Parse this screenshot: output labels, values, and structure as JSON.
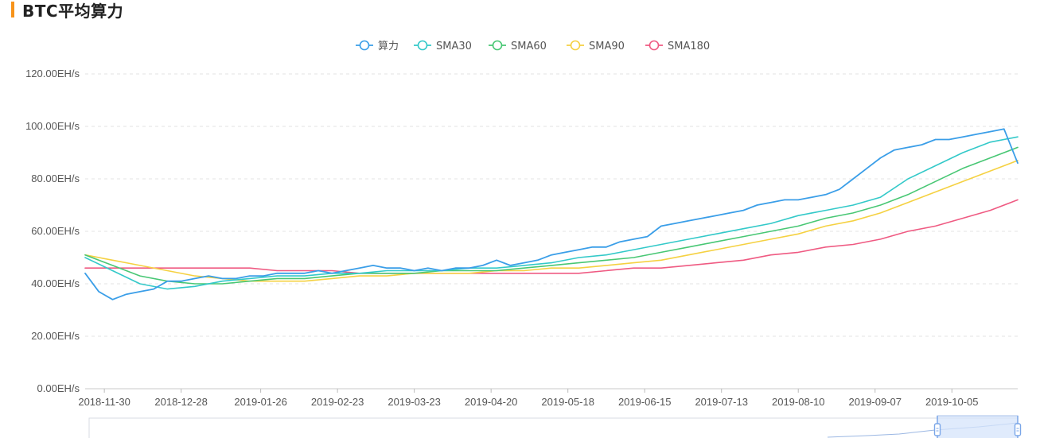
{
  "page": {
    "title": "BTC平均算力"
  },
  "colors": {
    "accent": "#f7931a",
    "hashrate": "#3a9ee8",
    "sma30": "#33c9c9",
    "sma60": "#48c774",
    "sma90": "#f5d142",
    "sma180": "#ef5a82",
    "grid": "#e3e3e3",
    "zoom_fill": "#d6e4fb",
    "zoom_handle": "#7aa6e8"
  },
  "chart_data": {
    "type": "line",
    "title": "BTC平均算力",
    "legend_position": "top-center",
    "grid": true,
    "y_unit": "EH/s",
    "ylim": [
      0,
      120
    ],
    "y_ticks": [
      "0.00EH/s",
      "20.00EH/s",
      "40.00EH/s",
      "60.00EH/s",
      "80.00EH/s",
      "100.00EH/s",
      "120.00EH/s"
    ],
    "x_ticks": [
      "2018-11-30",
      "2018-12-28",
      "2019-01-26",
      "2019-02-23",
      "2019-03-23",
      "2019-04-20",
      "2019-05-18",
      "2019-06-15",
      "2019-07-13",
      "2019-08-10",
      "2019-09-07",
      "2019-10-05"
    ],
    "x_range": [
      "2018-11-23",
      "2019-10-29"
    ],
    "series": [
      {
        "name": "算力",
        "key": "hashrate",
        "points": [
          [
            "2018-11-23",
            44
          ],
          [
            "2018-11-28",
            37
          ],
          [
            "2018-12-03",
            34
          ],
          [
            "2018-12-08",
            36
          ],
          [
            "2018-12-13",
            37
          ],
          [
            "2018-12-18",
            38
          ],
          [
            "2018-12-23",
            41
          ],
          [
            "2018-12-28",
            41
          ],
          [
            "2019-01-02",
            42
          ],
          [
            "2019-01-07",
            43
          ],
          [
            "2019-01-12",
            42
          ],
          [
            "2019-01-17",
            42
          ],
          [
            "2019-01-22",
            43
          ],
          [
            "2019-01-27",
            43
          ],
          [
            "2019-02-01",
            44
          ],
          [
            "2019-02-06",
            44
          ],
          [
            "2019-02-11",
            44
          ],
          [
            "2019-02-16",
            45
          ],
          [
            "2019-02-21",
            44
          ],
          [
            "2019-02-26",
            45
          ],
          [
            "2019-03-03",
            46
          ],
          [
            "2019-03-08",
            47
          ],
          [
            "2019-03-13",
            46
          ],
          [
            "2019-03-18",
            46
          ],
          [
            "2019-03-23",
            45
          ],
          [
            "2019-03-28",
            46
          ],
          [
            "2019-04-02",
            45
          ],
          [
            "2019-04-07",
            46
          ],
          [
            "2019-04-12",
            46
          ],
          [
            "2019-04-17",
            47
          ],
          [
            "2019-04-22",
            49
          ],
          [
            "2019-04-27",
            47
          ],
          [
            "2019-05-02",
            48
          ],
          [
            "2019-05-07",
            49
          ],
          [
            "2019-05-12",
            51
          ],
          [
            "2019-05-17",
            52
          ],
          [
            "2019-05-22",
            53
          ],
          [
            "2019-05-27",
            54
          ],
          [
            "2019-06-01",
            54
          ],
          [
            "2019-06-06",
            56
          ],
          [
            "2019-06-11",
            57
          ],
          [
            "2019-06-16",
            58
          ],
          [
            "2019-06-21",
            62
          ],
          [
            "2019-06-26",
            63
          ],
          [
            "2019-07-01",
            64
          ],
          [
            "2019-07-06",
            65
          ],
          [
            "2019-07-11",
            66
          ],
          [
            "2019-07-16",
            67
          ],
          [
            "2019-07-21",
            68
          ],
          [
            "2019-07-26",
            70
          ],
          [
            "2019-07-31",
            71
          ],
          [
            "2019-08-05",
            72
          ],
          [
            "2019-08-10",
            72
          ],
          [
            "2019-08-15",
            73
          ],
          [
            "2019-08-20",
            74
          ],
          [
            "2019-08-25",
            76
          ],
          [
            "2019-08-30",
            80
          ],
          [
            "2019-09-04",
            84
          ],
          [
            "2019-09-09",
            88
          ],
          [
            "2019-09-14",
            91
          ],
          [
            "2019-09-19",
            92
          ],
          [
            "2019-09-24",
            93
          ],
          [
            "2019-09-29",
            95
          ],
          [
            "2019-10-04",
            95
          ],
          [
            "2019-10-09",
            96
          ],
          [
            "2019-10-14",
            97
          ],
          [
            "2019-10-19",
            98
          ],
          [
            "2019-10-24",
            99
          ],
          [
            "2019-10-29",
            86
          ]
        ]
      },
      {
        "name": "SMA30",
        "key": "sma30",
        "points": [
          [
            "2018-11-23",
            50
          ],
          [
            "2018-12-03",
            45
          ],
          [
            "2018-12-13",
            40
          ],
          [
            "2018-12-23",
            38
          ],
          [
            "2019-01-02",
            39
          ],
          [
            "2019-01-12",
            41
          ],
          [
            "2019-01-22",
            42
          ],
          [
            "2019-02-01",
            43
          ],
          [
            "2019-02-11",
            43
          ],
          [
            "2019-02-21",
            44
          ],
          [
            "2019-03-03",
            44
          ],
          [
            "2019-03-13",
            45
          ],
          [
            "2019-03-23",
            45
          ],
          [
            "2019-04-02",
            45
          ],
          [
            "2019-04-12",
            46
          ],
          [
            "2019-04-22",
            46
          ],
          [
            "2019-05-02",
            47
          ],
          [
            "2019-05-12",
            48
          ],
          [
            "2019-05-22",
            50
          ],
          [
            "2019-06-01",
            51
          ],
          [
            "2019-06-11",
            53
          ],
          [
            "2019-06-21",
            55
          ],
          [
            "2019-07-01",
            57
          ],
          [
            "2019-07-11",
            59
          ],
          [
            "2019-07-21",
            61
          ],
          [
            "2019-07-31",
            63
          ],
          [
            "2019-08-10",
            66
          ],
          [
            "2019-08-20",
            68
          ],
          [
            "2019-08-30",
            70
          ],
          [
            "2019-09-09",
            73
          ],
          [
            "2019-09-19",
            80
          ],
          [
            "2019-09-29",
            85
          ],
          [
            "2019-10-09",
            90
          ],
          [
            "2019-10-19",
            94
          ],
          [
            "2019-10-29",
            96
          ]
        ]
      },
      {
        "name": "SMA60",
        "key": "sma60",
        "points": [
          [
            "2018-11-23",
            51
          ],
          [
            "2018-12-03",
            47
          ],
          [
            "2018-12-13",
            43
          ],
          [
            "2018-12-23",
            41
          ],
          [
            "2019-01-02",
            40
          ],
          [
            "2019-01-12",
            40
          ],
          [
            "2019-01-22",
            41
          ],
          [
            "2019-02-01",
            42
          ],
          [
            "2019-02-11",
            42
          ],
          [
            "2019-02-21",
            43
          ],
          [
            "2019-03-03",
            44
          ],
          [
            "2019-03-13",
            44
          ],
          [
            "2019-03-23",
            44
          ],
          [
            "2019-04-02",
            45
          ],
          [
            "2019-04-12",
            45
          ],
          [
            "2019-04-22",
            45
          ],
          [
            "2019-05-02",
            46
          ],
          [
            "2019-05-12",
            47
          ],
          [
            "2019-05-22",
            48
          ],
          [
            "2019-06-01",
            49
          ],
          [
            "2019-06-11",
            50
          ],
          [
            "2019-06-21",
            52
          ],
          [
            "2019-07-01",
            54
          ],
          [
            "2019-07-11",
            56
          ],
          [
            "2019-07-21",
            58
          ],
          [
            "2019-07-31",
            60
          ],
          [
            "2019-08-10",
            62
          ],
          [
            "2019-08-20",
            65
          ],
          [
            "2019-08-30",
            67
          ],
          [
            "2019-09-09",
            70
          ],
          [
            "2019-09-19",
            74
          ],
          [
            "2019-09-29",
            79
          ],
          [
            "2019-10-09",
            84
          ],
          [
            "2019-10-19",
            88
          ],
          [
            "2019-10-29",
            92
          ]
        ]
      },
      {
        "name": "SMA90",
        "key": "sma90",
        "points": [
          [
            "2018-11-23",
            51
          ],
          [
            "2018-12-03",
            49
          ],
          [
            "2018-12-13",
            47
          ],
          [
            "2018-12-23",
            45
          ],
          [
            "2019-01-02",
            43
          ],
          [
            "2019-01-12",
            42
          ],
          [
            "2019-01-22",
            41
          ],
          [
            "2019-02-01",
            41
          ],
          [
            "2019-02-11",
            41
          ],
          [
            "2019-02-21",
            42
          ],
          [
            "2019-03-03",
            43
          ],
          [
            "2019-03-13",
            43
          ],
          [
            "2019-03-23",
            44
          ],
          [
            "2019-04-02",
            44
          ],
          [
            "2019-04-12",
            44
          ],
          [
            "2019-04-22",
            45
          ],
          [
            "2019-05-02",
            45
          ],
          [
            "2019-05-12",
            46
          ],
          [
            "2019-05-22",
            46
          ],
          [
            "2019-06-01",
            47
          ],
          [
            "2019-06-11",
            48
          ],
          [
            "2019-06-21",
            49
          ],
          [
            "2019-07-01",
            51
          ],
          [
            "2019-07-11",
            53
          ],
          [
            "2019-07-21",
            55
          ],
          [
            "2019-07-31",
            57
          ],
          [
            "2019-08-10",
            59
          ],
          [
            "2019-08-20",
            62
          ],
          [
            "2019-08-30",
            64
          ],
          [
            "2019-09-09",
            67
          ],
          [
            "2019-09-19",
            71
          ],
          [
            "2019-09-29",
            75
          ],
          [
            "2019-10-09",
            79
          ],
          [
            "2019-10-19",
            83
          ],
          [
            "2019-10-29",
            87
          ]
        ]
      },
      {
        "name": "SMA180",
        "key": "sma180",
        "points": [
          [
            "2018-11-23",
            46
          ],
          [
            "2018-12-03",
            46
          ],
          [
            "2018-12-13",
            46
          ],
          [
            "2018-12-23",
            46
          ],
          [
            "2019-01-02",
            46
          ],
          [
            "2019-01-12",
            46
          ],
          [
            "2019-01-22",
            46
          ],
          [
            "2019-02-01",
            45
          ],
          [
            "2019-02-11",
            45
          ],
          [
            "2019-02-21",
            45
          ],
          [
            "2019-03-03",
            44
          ],
          [
            "2019-03-13",
            44
          ],
          [
            "2019-03-23",
            44
          ],
          [
            "2019-04-02",
            44
          ],
          [
            "2019-04-12",
            44
          ],
          [
            "2019-04-22",
            44
          ],
          [
            "2019-05-02",
            44
          ],
          [
            "2019-05-12",
            44
          ],
          [
            "2019-05-22",
            44
          ],
          [
            "2019-06-01",
            45
          ],
          [
            "2019-06-11",
            46
          ],
          [
            "2019-06-21",
            46
          ],
          [
            "2019-07-01",
            47
          ],
          [
            "2019-07-11",
            48
          ],
          [
            "2019-07-21",
            49
          ],
          [
            "2019-07-31",
            51
          ],
          [
            "2019-08-10",
            52
          ],
          [
            "2019-08-20",
            54
          ],
          [
            "2019-08-30",
            55
          ],
          [
            "2019-09-09",
            57
          ],
          [
            "2019-09-19",
            60
          ],
          [
            "2019-09-29",
            62
          ],
          [
            "2019-10-09",
            65
          ],
          [
            "2019-10-19",
            68
          ],
          [
            "2019-10-29",
            72
          ]
        ]
      }
    ]
  }
}
